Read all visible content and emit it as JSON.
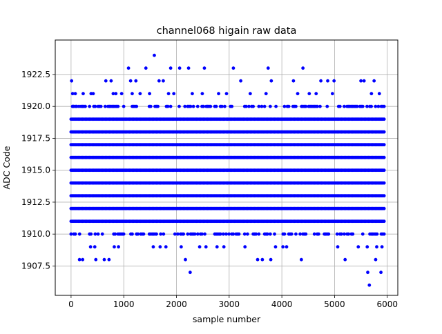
{
  "chart_data": {
    "type": "scatter",
    "title": "channel068 higain raw data",
    "xlabel": "sample number",
    "ylabel": "ADC Code",
    "xlim": [
      -300,
      6200
    ],
    "ylim": [
      1905.2,
      1925.2
    ],
    "xticks": [
      0,
      1000,
      2000,
      3000,
      4000,
      5000,
      6000
    ],
    "xtick_labels": [
      "0",
      "1000",
      "2000",
      "3000",
      "4000",
      "5000",
      "6000"
    ],
    "yticks": [
      1907.5,
      1910.0,
      1912.5,
      1915.0,
      1917.5,
      1920.0,
      1922.5
    ],
    "ytick_labels": [
      "1907.5",
      "1910.0",
      "1912.5",
      "1915.0",
      "1917.5",
      "1920.0",
      "1922.5"
    ],
    "grid": true,
    "marker_color": "#0000ff",
    "series": [
      {
        "x_range": [
          0,
          5940
        ],
        "dense_levels": [
          1911,
          1912,
          1913,
          1914,
          1915,
          1916,
          1917,
          1918,
          1919
        ],
        "sparse_levels": [
          1910,
          1920
        ],
        "outliers": [
          {
            "x": 10,
            "y": 1922
          },
          {
            "x": 30,
            "y": 1921
          },
          {
            "x": 80,
            "y": 1921
          },
          {
            "x": 40,
            "y": 1920
          },
          {
            "x": 90,
            "y": 1920
          },
          {
            "x": 150,
            "y": 1920
          },
          {
            "x": 160,
            "y": 1908
          },
          {
            "x": 220,
            "y": 1908
          },
          {
            "x": 230,
            "y": 1921
          },
          {
            "x": 370,
            "y": 1909
          },
          {
            "x": 380,
            "y": 1921
          },
          {
            "x": 420,
            "y": 1921
          },
          {
            "x": 450,
            "y": 1909
          },
          {
            "x": 470,
            "y": 1908
          },
          {
            "x": 630,
            "y": 1908
          },
          {
            "x": 660,
            "y": 1922
          },
          {
            "x": 720,
            "y": 1908
          },
          {
            "x": 760,
            "y": 1922
          },
          {
            "x": 800,
            "y": 1921
          },
          {
            "x": 820,
            "y": 1909
          },
          {
            "x": 850,
            "y": 1921
          },
          {
            "x": 900,
            "y": 1909
          },
          {
            "x": 960,
            "y": 1921
          },
          {
            "x": 1090,
            "y": 1923
          },
          {
            "x": 1130,
            "y": 1922
          },
          {
            "x": 1160,
            "y": 1921
          },
          {
            "x": 1230,
            "y": 1922
          },
          {
            "x": 1310,
            "y": 1921
          },
          {
            "x": 1420,
            "y": 1923
          },
          {
            "x": 1490,
            "y": 1921
          },
          {
            "x": 1560,
            "y": 1909
          },
          {
            "x": 1580,
            "y": 1924
          },
          {
            "x": 1670,
            "y": 1922
          },
          {
            "x": 1690,
            "y": 1909
          },
          {
            "x": 1750,
            "y": 1922
          },
          {
            "x": 1800,
            "y": 1909
          },
          {
            "x": 1850,
            "y": 1921
          },
          {
            "x": 1890,
            "y": 1923
          },
          {
            "x": 1950,
            "y": 1921
          },
          {
            "x": 2060,
            "y": 1923
          },
          {
            "x": 2090,
            "y": 1909
          },
          {
            "x": 2170,
            "y": 1908
          },
          {
            "x": 2230,
            "y": 1923
          },
          {
            "x": 2260,
            "y": 1907
          },
          {
            "x": 2300,
            "y": 1921
          },
          {
            "x": 2440,
            "y": 1909
          },
          {
            "x": 2490,
            "y": 1921
          },
          {
            "x": 2530,
            "y": 1923
          },
          {
            "x": 2560,
            "y": 1909
          },
          {
            "x": 2770,
            "y": 1909
          },
          {
            "x": 2800,
            "y": 1921
          },
          {
            "x": 2900,
            "y": 1909
          },
          {
            "x": 2950,
            "y": 1921
          },
          {
            "x": 3080,
            "y": 1923
          },
          {
            "x": 3220,
            "y": 1922
          },
          {
            "x": 3300,
            "y": 1909
          },
          {
            "x": 3400,
            "y": 1921
          },
          {
            "x": 3540,
            "y": 1908
          },
          {
            "x": 3630,
            "y": 1908
          },
          {
            "x": 3700,
            "y": 1921
          },
          {
            "x": 3740,
            "y": 1923
          },
          {
            "x": 3790,
            "y": 1908
          },
          {
            "x": 3800,
            "y": 1922
          },
          {
            "x": 3880,
            "y": 1909
          },
          {
            "x": 4020,
            "y": 1909
          },
          {
            "x": 4090,
            "y": 1909
          },
          {
            "x": 4220,
            "y": 1922
          },
          {
            "x": 4300,
            "y": 1921
          },
          {
            "x": 4370,
            "y": 1908
          },
          {
            "x": 4400,
            "y": 1923
          },
          {
            "x": 4520,
            "y": 1921
          },
          {
            "x": 4650,
            "y": 1921
          },
          {
            "x": 4740,
            "y": 1922
          },
          {
            "x": 4870,
            "y": 1922
          },
          {
            "x": 4960,
            "y": 1921
          },
          {
            "x": 4990,
            "y": 1922
          },
          {
            "x": 5060,
            "y": 1909
          },
          {
            "x": 5200,
            "y": 1908
          },
          {
            "x": 5450,
            "y": 1909
          },
          {
            "x": 5500,
            "y": 1922
          },
          {
            "x": 5560,
            "y": 1922
          },
          {
            "x": 5620,
            "y": 1909
          },
          {
            "x": 5630,
            "y": 1907
          },
          {
            "x": 5660,
            "y": 1906
          },
          {
            "x": 5700,
            "y": 1921
          },
          {
            "x": 5750,
            "y": 1922
          },
          {
            "x": 5780,
            "y": 1908
          },
          {
            "x": 5800,
            "y": 1909
          },
          {
            "x": 5850,
            "y": 1921
          },
          {
            "x": 5880,
            "y": 1907
          },
          {
            "x": 5900,
            "y": 1909
          }
        ]
      }
    ]
  }
}
